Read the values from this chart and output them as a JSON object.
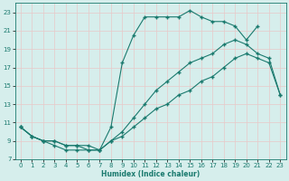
{
  "xlabel": "Humidex (Indice chaleur)",
  "bg_color": "#d6eeec",
  "grid_color": "#c8dedd",
  "line_color": "#1a7a6e",
  "xlim": [
    -0.5,
    23.5
  ],
  "ylim": [
    7,
    24
  ],
  "xticks": [
    0,
    1,
    2,
    3,
    4,
    5,
    6,
    7,
    8,
    9,
    10,
    11,
    12,
    13,
    14,
    15,
    16,
    17,
    18,
    19,
    20,
    21,
    22,
    23
  ],
  "yticks": [
    7,
    9,
    11,
    13,
    15,
    17,
    19,
    21,
    23
  ],
  "line1": {
    "x": [
      0,
      1,
      2,
      3,
      4,
      5,
      6,
      7,
      8,
      9,
      10,
      11,
      12,
      13,
      14,
      15,
      16,
      17,
      18,
      19,
      20,
      21
    ],
    "y": [
      10.5,
      9.5,
      9.0,
      8.5,
      8.0,
      8.0,
      8.0,
      8.0,
      10.5,
      17.5,
      20.5,
      22.5,
      22.5,
      22.5,
      22.5,
      23.2,
      22.5,
      22.0,
      22.0,
      21.5,
      20.0,
      21.5
    ]
  },
  "line2": {
    "x": [
      0,
      1,
      2,
      3,
      4,
      5,
      6,
      7,
      8,
      9,
      10,
      11,
      12,
      13,
      14,
      15,
      16,
      17,
      18,
      19,
      20,
      21,
      22,
      23
    ],
    "y": [
      10.5,
      9.5,
      9.0,
      9.0,
      8.5,
      8.5,
      8.5,
      8.0,
      9.0,
      10.0,
      11.5,
      13.0,
      14.5,
      15.5,
      16.5,
      17.5,
      18.0,
      18.5,
      19.5,
      20.0,
      19.5,
      18.5,
      18.0,
      14.0
    ]
  },
  "line3": {
    "x": [
      0,
      1,
      2,
      3,
      4,
      5,
      6,
      7,
      8,
      9,
      10,
      11,
      12,
      13,
      14,
      15,
      16,
      17,
      18,
      19,
      20,
      21,
      22,
      23
    ],
    "y": [
      10.5,
      9.5,
      9.0,
      9.0,
      8.5,
      8.5,
      8.0,
      8.0,
      9.0,
      9.5,
      10.5,
      11.5,
      12.5,
      13.0,
      14.0,
      14.5,
      15.5,
      16.0,
      17.0,
      18.0,
      18.5,
      18.0,
      17.5,
      14.0
    ]
  }
}
